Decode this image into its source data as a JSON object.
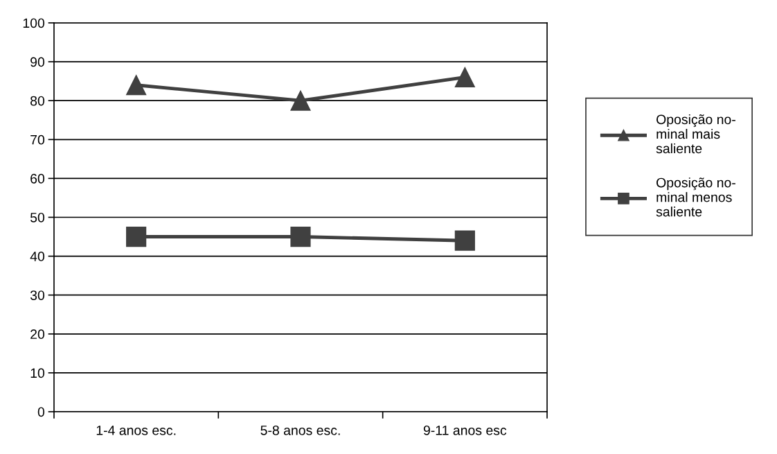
{
  "chart_data": {
    "type": "line",
    "categories": [
      "1-4 anos esc.",
      "5-8 anos esc.",
      "9-11 anos esc"
    ],
    "series": [
      {
        "name": "Oposição no-\nminal mais\nsaliente",
        "color": "#404040",
        "marker": "triangle",
        "values": [
          84,
          80,
          86
        ]
      },
      {
        "name": "Oposição no-\nminal menos\nsaliente",
        "color": "#404040",
        "marker": "square",
        "values": [
          45,
          45,
          44
        ]
      }
    ],
    "ylim": [
      0,
      100
    ],
    "yticks": [
      0,
      10,
      20,
      30,
      40,
      50,
      60,
      70,
      80,
      90,
      100
    ],
    "grid": "y",
    "legend": "right",
    "line_style": "solid"
  }
}
